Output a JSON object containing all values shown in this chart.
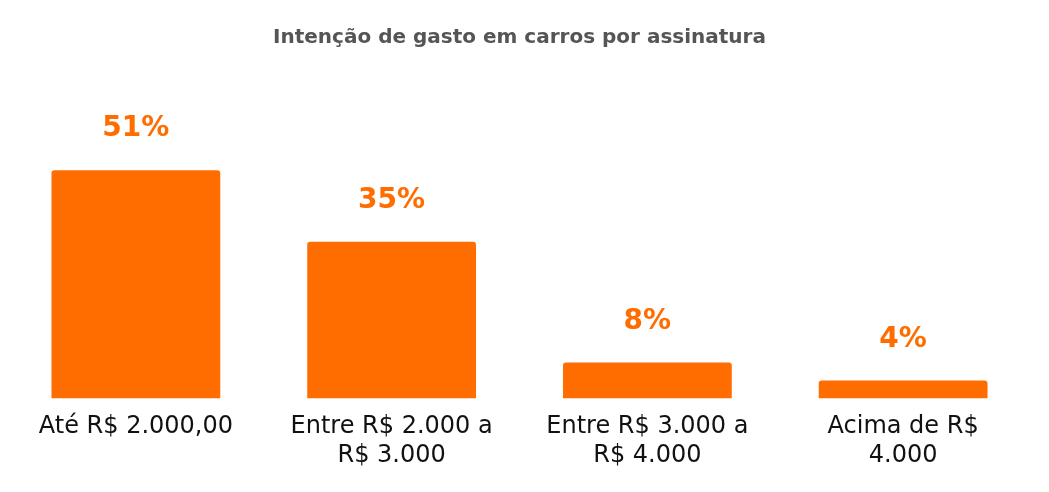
{
  "chart_data": {
    "type": "bar",
    "title": "Intenção de gasto em carros por assinatura",
    "categories": [
      "Até R$ 2.000,00",
      "Entre R$ 2.000 a R$ 3.000",
      "Entre R$ 3.000 a R$ 4.000",
      "Acima de R$ 4.000"
    ],
    "values": [
      51,
      35,
      8,
      4
    ],
    "value_labels": [
      "51%",
      "35%",
      "8%",
      "4%"
    ],
    "color": "#ff6d00",
    "grid": false,
    "legend": false
  }
}
